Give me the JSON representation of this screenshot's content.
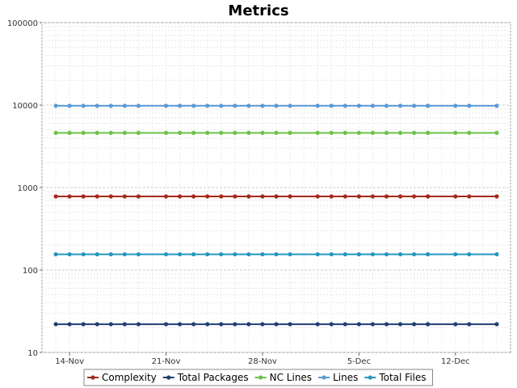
{
  "chart_data": {
    "type": "line",
    "title": "Metrics",
    "xlabel": "",
    "ylabel": "",
    "yscale": "log",
    "ylim": [
      10,
      100000
    ],
    "y_ticks": [
      10,
      100,
      1000,
      10000,
      100000
    ],
    "y_tick_labels": [
      "10",
      "100",
      "1000",
      "10000",
      "100000"
    ],
    "xlim": [
      "2023-11-12",
      "2023-12-16"
    ],
    "x_ticks": [
      "2023-11-14",
      "2023-11-21",
      "2023-11-28",
      "2023-12-05",
      "2023-12-12"
    ],
    "x_tick_labels": [
      "14-Nov",
      "21-Nov",
      "28-Nov",
      "5-Dec",
      "12-Dec"
    ],
    "grid": true,
    "legend_position": "bottom",
    "x": [
      "2023-11-13",
      "2023-11-14",
      "2023-11-15",
      "2023-11-16",
      "2023-11-17",
      "2023-11-18",
      "2023-11-19",
      "2023-11-21",
      "2023-11-22",
      "2023-11-23",
      "2023-11-24",
      "2023-11-25",
      "2023-11-26",
      "2023-11-27",
      "2023-11-28",
      "2023-11-29",
      "2023-11-30",
      "2023-12-02",
      "2023-12-03",
      "2023-12-04",
      "2023-12-05",
      "2023-12-06",
      "2023-12-07",
      "2023-12-08",
      "2023-12-09",
      "2023-12-10",
      "2023-12-10",
      "2023-12-12",
      "2023-12-13",
      "2023-12-15"
    ],
    "series": [
      {
        "name": "Complexity",
        "color": "#a52a1a",
        "values": [
          780,
          780,
          780,
          780,
          780,
          780,
          780,
          780,
          780,
          780,
          780,
          780,
          780,
          780,
          780,
          780,
          780,
          780,
          780,
          780,
          780,
          780,
          780,
          780,
          780,
          780,
          780,
          780,
          780,
          780
        ]
      },
      {
        "name": "Total Packages",
        "color": "#1f3f73",
        "values": [
          22,
          22,
          22,
          22,
          22,
          22,
          22,
          22,
          22,
          22,
          22,
          22,
          22,
          22,
          22,
          22,
          22,
          22,
          22,
          22,
          22,
          22,
          22,
          22,
          22,
          22,
          22,
          22,
          22,
          22
        ]
      },
      {
        "name": "NC Lines",
        "color": "#6cc24a",
        "values": [
          4600,
          4600,
          4600,
          4600,
          4600,
          4600,
          4600,
          4600,
          4600,
          4600,
          4600,
          4600,
          4600,
          4600,
          4600,
          4600,
          4600,
          4600,
          4600,
          4600,
          4600,
          4600,
          4600,
          4600,
          4600,
          4600,
          4600,
          4600,
          4600,
          4600
        ]
      },
      {
        "name": "Lines",
        "color": "#5b9bd5",
        "values": [
          9800,
          9800,
          9800,
          9800,
          9800,
          9800,
          9800,
          9800,
          9800,
          9800,
          9800,
          9800,
          9800,
          9800,
          9800,
          9800,
          9800,
          9800,
          9800,
          9800,
          9800,
          9800,
          9800,
          9800,
          9800,
          9800,
          9800,
          9800,
          9800,
          9800
        ]
      },
      {
        "name": "Total Files",
        "color": "#2596be",
        "values": [
          155,
          155,
          155,
          155,
          155,
          155,
          155,
          155,
          155,
          155,
          155,
          155,
          155,
          155,
          155,
          155,
          155,
          155,
          155,
          155,
          155,
          155,
          155,
          155,
          155,
          155,
          155,
          155,
          155,
          155
        ]
      }
    ]
  }
}
